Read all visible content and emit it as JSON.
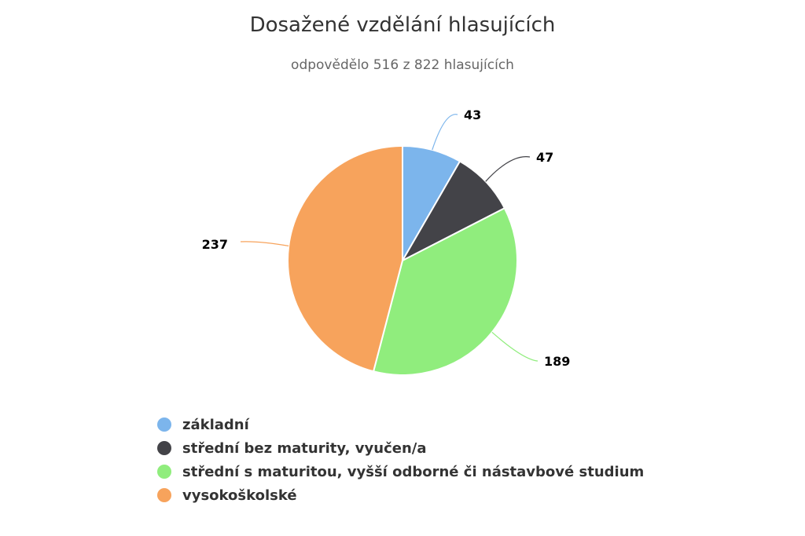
{
  "chart_data": {
    "type": "pie",
    "title": "Dosažené vzdělání hlasujících",
    "subtitle": "odpovědělo 516 z 822 hlasujících",
    "legend_position": "bottom-left",
    "slices": [
      {
        "label": "základní",
        "value": 43,
        "color": "#7cb5ec"
      },
      {
        "label": "střední bez maturity, vyučen/a",
        "value": 47,
        "color": "#434348"
      },
      {
        "label": "střední s maturitou, vyšší odborné či nástavbové studium",
        "value": 189,
        "color": "#90ed7d"
      },
      {
        "label": "vysokoškolské",
        "value": 237,
        "color": "#f7a35c"
      }
    ]
  }
}
